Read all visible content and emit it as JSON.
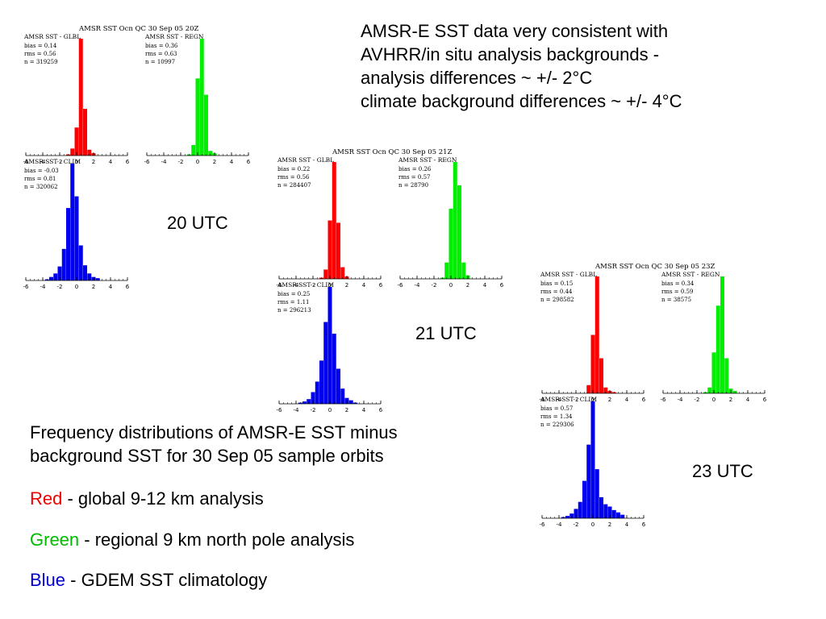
{
  "notes": {
    "lines": [
      "AMSR-E SST data very consistent with",
      "AVHRR/in situ analysis backgrounds -",
      "analysis differences ~ +/- 2°C",
      "climate background differences ~ +/- 4°C"
    ]
  },
  "caption": {
    "line1": "Frequency distributions of AMSR-E SST minus",
    "line2": "background SST for 30 Sep 05 sample orbits"
  },
  "legend": {
    "red_word": "Red",
    "red_desc": " - global 9-12 km analysis",
    "green_word": "Green",
    "green_desc": " - regional 9 km north pole analysis",
    "blue_word": "Blue",
    "blue_desc": " - GDEM SST climatology"
  },
  "colors": {
    "red": "#ff0000",
    "green": "#00ee00",
    "blue": "#0000ee"
  },
  "chart_data": [
    {
      "type": "bar",
      "group_label": "20 UTC",
      "header": "AMSR SST Ocn QC   30 Sep 05 20Z",
      "x_ticks": [
        "-6",
        "-4",
        "-2",
        "0",
        "2",
        "4",
        "6"
      ],
      "xlim": [
        -6,
        6
      ],
      "bin_centers": [
        -3.5,
        -3,
        -2.5,
        -2,
        -1.5,
        -1,
        -0.5,
        0,
        0.5,
        1,
        1.5,
        2,
        2.5,
        3,
        3.5
      ],
      "panels": [
        {
          "series": "red",
          "title": "AMSR SST - GLBL",
          "stats": [
            "bias = 0.14",
            "rms = 0.56",
            "n = 319259"
          ],
          "values": [
            0,
            0,
            0,
            0,
            0,
            0.01,
            0.06,
            0.24,
            1,
            0.4,
            0.05,
            0.02,
            0,
            0,
            0
          ]
        },
        {
          "series": "green",
          "title": "AMSR SST - REGN",
          "stats": [
            "bias = 0.36",
            "rms = 0.63",
            "n = 10997"
          ],
          "values": [
            0,
            0,
            0,
            0,
            0,
            0.01,
            0.09,
            0.66,
            1,
            0.52,
            0.04,
            0.02,
            0,
            0,
            0
          ]
        },
        {
          "series": "blue",
          "title": "AMSR SST - CLIM",
          "stats": [
            "bias = -0.03",
            "rms = 0.81",
            "n = 320062"
          ],
          "values": [
            0.01,
            0.03,
            0.06,
            0.12,
            0.27,
            0.62,
            1,
            0.72,
            0.3,
            0.13,
            0.06,
            0.03,
            0.02,
            0,
            0
          ]
        }
      ]
    },
    {
      "type": "bar",
      "group_label": "21 UTC",
      "header": "AMSR SST Ocn QC   30 Sep 05 21Z",
      "x_ticks": [
        "-6",
        "-4",
        "-2",
        "0",
        "2",
        "4",
        "6"
      ],
      "xlim": [
        -6,
        6
      ],
      "bin_centers": [
        -3.5,
        -3,
        -2.5,
        -2,
        -1.5,
        -1,
        -0.5,
        0,
        0.5,
        1,
        1.5,
        2,
        2.5,
        3,
        3.5
      ],
      "panels": [
        {
          "series": "red",
          "title": "AMSR SST - GLBL",
          "stats": [
            "bias = 0.22",
            "rms = 0.56",
            "n = 284407"
          ],
          "values": [
            0,
            0,
            0,
            0,
            0,
            0.01,
            0.08,
            0.5,
            1,
            0.48,
            0.1,
            0.02,
            0,
            0,
            0
          ]
        },
        {
          "series": "green",
          "title": "AMSR SST - REGN",
          "stats": [
            "bias = 0.26",
            "rms = 0.57",
            "n = 28790"
          ],
          "values": [
            0,
            0,
            0,
            0,
            0,
            0.01,
            0.14,
            0.6,
            1,
            0.8,
            0.14,
            0.03,
            0,
            0,
            0
          ]
        },
        {
          "series": "blue",
          "title": "AMSR SST - CLIM",
          "stats": [
            "bias = 0.25",
            "rms = 1.11",
            "n = 296213"
          ],
          "values": [
            0.01,
            0.02,
            0.04,
            0.1,
            0.19,
            0.37,
            0.7,
            1,
            0.6,
            0.3,
            0.13,
            0.05,
            0.03,
            0.01,
            0
          ]
        }
      ]
    },
    {
      "type": "bar",
      "group_label": "23 UTC",
      "header": "AMSR SST Ocn QC   30 Sep 05 23Z",
      "x_ticks": [
        "-6",
        "-4",
        "-2",
        "0",
        "2",
        "4",
        "6"
      ],
      "xlim": [
        -6,
        6
      ],
      "bin_centers": [
        -3.5,
        -3,
        -2.5,
        -2,
        -1.5,
        -1,
        -0.5,
        0,
        0.5,
        1,
        1.5,
        2,
        2.5,
        3,
        3.5
      ],
      "panels": [
        {
          "series": "red",
          "title": "AMSR SST - GLBL",
          "stats": [
            "bias = 0.15",
            "rms = 0.44",
            "n = 298582"
          ],
          "values": [
            0,
            0,
            0,
            0,
            0,
            0,
            0.07,
            0.5,
            1,
            0.3,
            0.05,
            0.02,
            0.01,
            0,
            0
          ]
        },
        {
          "series": "green",
          "title": "AMSR SST - REGN",
          "stats": [
            "bias = 0.34",
            "rms = 0.59",
            "n = 38575"
          ],
          "values": [
            0,
            0,
            0,
            0,
            0,
            0.01,
            0.05,
            0.35,
            0.75,
            1,
            0.3,
            0.04,
            0.02,
            0,
            0
          ]
        },
        {
          "series": "blue",
          "title": "AMSR SST - CLIM",
          "stats": [
            "bias = 0.57",
            "rms = 1.34",
            "n = 229306"
          ],
          "values": [
            0.01,
            0.02,
            0.04,
            0.08,
            0.14,
            0.32,
            0.63,
            1,
            0.42,
            0.18,
            0.12,
            0.1,
            0.07,
            0.05,
            0.03
          ]
        }
      ]
    }
  ]
}
